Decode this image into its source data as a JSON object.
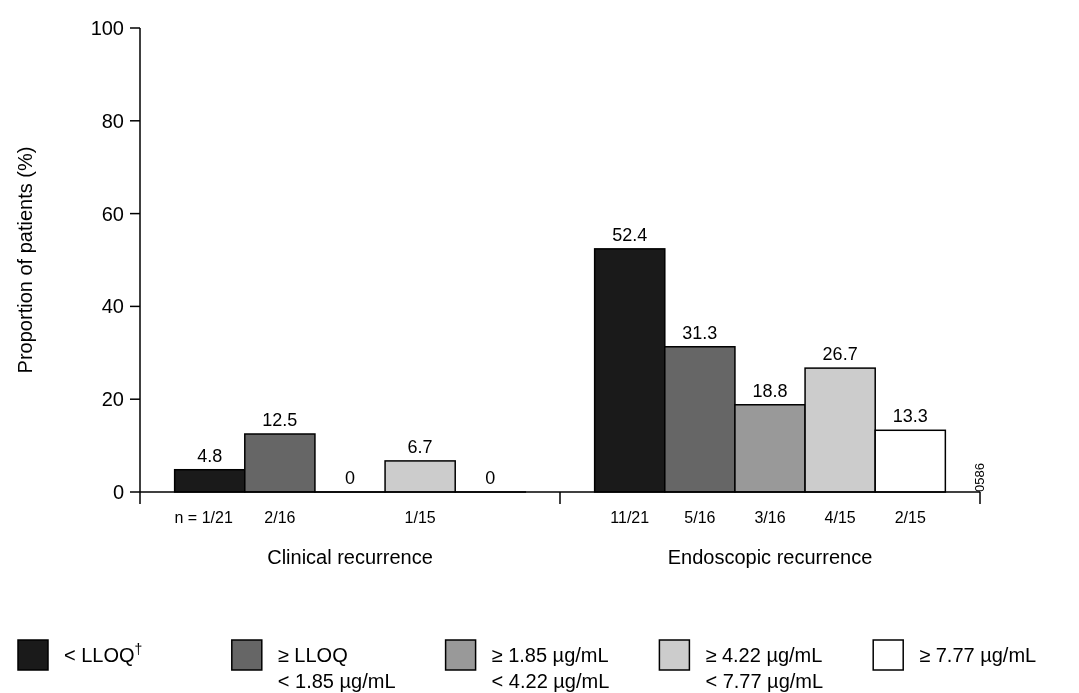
{
  "chart_data": {
    "type": "bar",
    "ylabel": "Proportion of patients (%)",
    "categories": [
      "Clinical recurrence",
      "Endoscopic recurrence"
    ],
    "series": [
      {
        "name": "< LLOQ$^{†}$",
        "color": "#1a1a1a",
        "values": [
          4.8,
          52.4
        ]
      },
      {
        "name": "≥ LLOQ\n< 1.85 µg/mL",
        "color": "#666666",
        "values": [
          12.5,
          31.3
        ]
      },
      {
        "name": "≥ 1.85 µg/mL\n< 4.22 µg/mL",
        "color": "#999999",
        "values": [
          0,
          18.8
        ]
      },
      {
        "name": "≥ 4.22 µg/mL\n< 7.77 µg/mL",
        "color": "#cccccc",
        "values": [
          6.7,
          26.7
        ]
      },
      {
        "name": "≥ 7.77 µg/mL",
        "color": "#ffffff",
        "values": [
          0,
          13.3
        ]
      }
    ],
    "ylim": [
      0,
      100
    ],
    "yticks": [
      0,
      20,
      40,
      60,
      80,
      100
    ],
    "data_labels": true,
    "legend": "bottom",
    "annotations": [
      "n = 1/21",
      "2/16",
      "1/15",
      "11/21",
      "5/16",
      "3/16",
      "4/15",
      "2/15",
      "0586"
    ]
  }
}
